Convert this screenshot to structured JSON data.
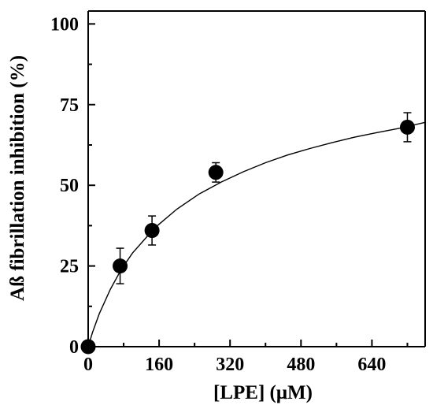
{
  "chart_data": {
    "type": "scatter",
    "title": "",
    "xlabel": "[LPE] (μM)",
    "ylabel": "Aß fibrillation inhibition (%)",
    "xlim": [
      0,
      760
    ],
    "ylim": [
      0,
      104
    ],
    "xticks": [
      0,
      160,
      320,
      480,
      640
    ],
    "yticks": [
      0,
      25,
      50,
      75,
      100
    ],
    "grid": false,
    "legend": "none",
    "series": [
      {
        "points": [
          {
            "x": 0,
            "y": 0,
            "err": 0
          },
          {
            "x": 72,
            "y": 25,
            "err": 5.5
          },
          {
            "x": 144,
            "y": 36,
            "err": 4.5
          },
          {
            "x": 288,
            "y": 54,
            "err": 3.0
          },
          {
            "x": 720,
            "y": 68,
            "err": 4.5
          }
        ]
      }
    ],
    "fit": {
      "model": "hyperbolic",
      "x": [
        0,
        10,
        25,
        50,
        75,
        100,
        150,
        200,
        250,
        300,
        350,
        400,
        450,
        500,
        550,
        600,
        650,
        700,
        760
      ],
      "y": [
        0,
        4.5,
        10.2,
        17.8,
        24.0,
        29.0,
        36.8,
        42.6,
        47.3,
        51.0,
        54.2,
        57.0,
        59.4,
        61.4,
        63.2,
        64.9,
        66.3,
        67.6,
        69.5
      ]
    },
    "colors": {
      "marker": "#000000",
      "line": "#000000",
      "axis": "#000000"
    }
  }
}
